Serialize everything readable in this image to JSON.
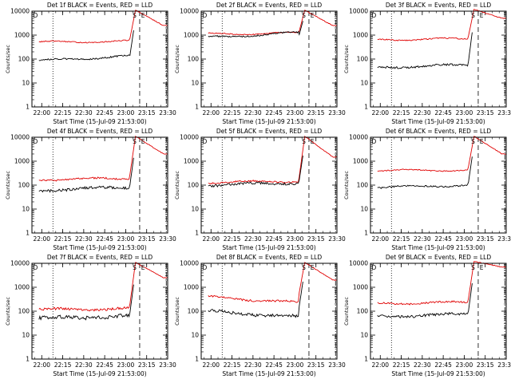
{
  "chart_data": [
    {
      "type": "line",
      "title": "Det 1f BLACK = Events, RED = LLD",
      "xlabel": "Start Time (15-Jul-09 21:53:00)",
      "ylabel": "Counts/sec",
      "x_ticks": [
        "22:00",
        "22:15",
        "22:30",
        "22:45",
        "23:00",
        "23:15",
        "23:30"
      ],
      "y_ticks": [
        "1",
        "10",
        "100",
        "1000",
        "10000"
      ],
      "yscale": "log",
      "ylim": [
        1,
        10000
      ],
      "markers": [
        "D",
        "S",
        "E"
      ],
      "red_base": 500,
      "red_drift": 0.05,
      "black_base": 85,
      "black_drift": 0.2,
      "noise": 0.04,
      "red_peak": 11000,
      "red_tail": 2500,
      "black_gap": false
    },
    {
      "type": "line",
      "title": "Det 2f BLACK = Events, RED = LLD",
      "xlabel": "Start Time (15-Jul-09 21:53:00)",
      "ylabel": "Counts/sec",
      "x_ticks": [
        "22:00",
        "22:15",
        "22:30",
        "22:45",
        "23:00",
        "23:15",
        "23:30"
      ],
      "y_ticks": [
        "1",
        "10",
        "100",
        "1000",
        "10000"
      ],
      "yscale": "log",
      "ylim": [
        1,
        10000
      ],
      "markers": [
        "D",
        "S",
        "E"
      ],
      "red_base": 1100,
      "red_drift": 0.05,
      "black_base": 800,
      "black_drift": 0.2,
      "noise": 0.04,
      "red_peak": 11000,
      "red_tail": 2500,
      "black_gap": true
    },
    {
      "type": "line",
      "title": "Det 3f BLACK = Events, RED = LLD",
      "xlabel": "Start Time (15-Jul-09 21:53:00)",
      "ylabel": "Counts/sec",
      "x_ticks": [
        "22:00",
        "22:15",
        "22:30",
        "22:45",
        "23:00",
        "23:15",
        "23:30"
      ],
      "y_ticks": [
        "1",
        "10",
        "100",
        "1000",
        "10000"
      ],
      "yscale": "log",
      "ylim": [
        1,
        10000
      ],
      "markers": [
        "D",
        "S",
        "E"
      ],
      "red_base": 650,
      "red_drift": 0.03,
      "black_base": 45,
      "black_drift": 0.1,
      "noise": 0.05,
      "red_peak": 12000,
      "red_tail": 5000,
      "black_gap": false
    },
    {
      "type": "line",
      "title": "Det 4f BLACK = Events, RED = LLD",
      "xlabel": "Start Time (15-Jul-09 21:53:00)",
      "ylabel": "Counts/sec",
      "x_ticks": [
        "22:00",
        "22:15",
        "22:30",
        "22:45",
        "23:00",
        "23:15",
        "23:30"
      ],
      "y_ticks": [
        "1",
        "10",
        "100",
        "1000",
        "10000"
      ],
      "yscale": "log",
      "ylim": [
        1,
        10000
      ],
      "markers": [
        "D",
        "S",
        "E"
      ],
      "red_base": 170,
      "red_drift": 0.05,
      "black_base": 60,
      "black_drift": 0.15,
      "noise": 0.07,
      "red_peak": 11000,
      "red_tail": 2000,
      "black_gap": false
    },
    {
      "type": "line",
      "title": "Det 5f BLACK = Events, RED = LLD",
      "xlabel": "Start Time (15-Jul-09 21:53:00)",
      "ylabel": "Counts/sec",
      "x_ticks": [
        "22:00",
        "22:15",
        "22:30",
        "22:45",
        "23:00",
        "23:15",
        "23:30"
      ],
      "y_ticks": [
        "1",
        "10",
        "100",
        "1000",
        "10000"
      ],
      "yscale": "log",
      "ylim": [
        1,
        10000
      ],
      "markers": [
        "D",
        "S",
        "E"
      ],
      "red_base": 130,
      "red_drift": 0.05,
      "black_base": 100,
      "black_drift": 0.1,
      "noise": 0.06,
      "red_peak": 11000,
      "red_tail": 1500,
      "black_gap": false
    },
    {
      "type": "line",
      "title": "Det 6f BLACK = Events, RED = LLD",
      "xlabel": "Start Time (15-Jul-09 21:53:00)",
      "ylabel": "Counts/sec",
      "x_ticks": [
        "22:00",
        "22:15",
        "22:30",
        "22:45",
        "23:00",
        "23:15",
        "23:30"
      ],
      "y_ticks": [
        "1",
        "10",
        "100",
        "1000",
        "10000"
      ],
      "yscale": "log",
      "ylim": [
        1,
        10000
      ],
      "markers": [
        "D",
        "S",
        "E"
      ],
      "red_base": 400,
      "red_drift": 0.03,
      "black_base": 80,
      "black_drift": 0.1,
      "noise": 0.04,
      "red_peak": 11000,
      "red_tail": 2000,
      "black_gap": false
    },
    {
      "type": "line",
      "title": "Det 7f BLACK = Events, RED = LLD",
      "xlabel": "Start Time (15-Jul-09 21:53:00)",
      "ylabel": "Counts/sec",
      "x_ticks": [
        "22:00",
        "22:15",
        "22:30",
        "22:45",
        "23:00",
        "23:15",
        "23:30"
      ],
      "y_ticks": [
        "1",
        "10",
        "100",
        "1000",
        "10000"
      ],
      "yscale": "log",
      "ylim": [
        1,
        10000
      ],
      "markers": [
        "D",
        "S",
        "E"
      ],
      "red_base": 115,
      "red_drift": 0.05,
      "black_base": 50,
      "black_drift": 0.1,
      "noise": 0.1,
      "red_peak": 11000,
      "red_tail": 2500,
      "black_gap": false
    },
    {
      "type": "line",
      "title": "Det 8f BLACK = Events, RED = LLD",
      "xlabel": "Start Time (15-Jul-09 21:53:00)",
      "ylabel": "Counts/sec",
      "x_ticks": [
        "22:00",
        "22:15",
        "22:30",
        "22:45",
        "23:00",
        "23:15",
        "23:30"
      ],
      "y_ticks": [
        "1",
        "10",
        "100",
        "1000",
        "10000"
      ],
      "yscale": "log",
      "ylim": [
        1,
        10000
      ],
      "markers": [
        "D",
        "S",
        "E"
      ],
      "red_base": 400,
      "red_drift": -0.25,
      "black_base": 100,
      "black_drift": -0.25,
      "noise": 0.08,
      "red_peak": 11000,
      "red_tail": 2000,
      "black_gap": false
    },
    {
      "type": "line",
      "title": "Det 9f BLACK = Events, RED = LLD",
      "xlabel": "Start Time (15-Jul-09 21:53:00)",
      "ylabel": "Counts/sec",
      "x_ticks": [
        "22:00",
        "22:15",
        "22:30",
        "22:45",
        "23:00",
        "23:15",
        "23:30"
      ],
      "y_ticks": [
        "1",
        "10",
        "100",
        "1000",
        "10000"
      ],
      "yscale": "log",
      "ylim": [
        1,
        10000
      ],
      "markers": [
        "D",
        "S",
        "E"
      ],
      "red_base": 210,
      "red_drift": 0.05,
      "black_base": 60,
      "black_drift": 0.1,
      "noise": 0.07,
      "red_peak": 12000,
      "red_tail": 7000,
      "black_gap": false
    }
  ],
  "colors": {
    "events": "#000000",
    "lld": "#e00000",
    "axes": "#000000",
    "background": "#ffffff"
  }
}
